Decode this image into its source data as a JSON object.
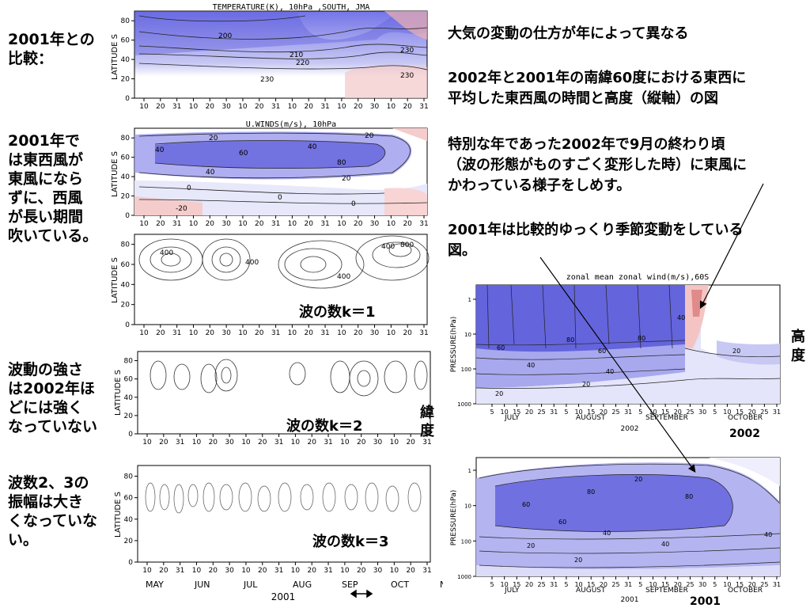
{
  "left_notes": {
    "n1": "2001年との\n比較：",
    "n2": "2001年で\nは東西風が\n東風になら\nずに、西風\nが長い期間\n吹いている。",
    "n3": "波動の強さ\nは2002年ほ\nどには強く\nなっていない",
    "n4": "波数2、3の\n振幅は大き\nくなっていな\nい。"
  },
  "right_notes": {
    "r1": "大気の変動の仕方が年によって異なる",
    "r2": "2002年と2001年の南緯60度における東西に\n平均した東西風の時間と高度（縦軸）の図",
    "r3": "特別な年であった2002年で9月の終わり頃\n（波の形態がものすごく変形した時）に東風に\nかわっている様子をしめす。",
    "r4": "2001年は比較的ゆっくり季節変動をしている\n図。"
  },
  "labels": {
    "k1": "波の数k＝1",
    "k2": "波の数k＝2",
    "k3": "波の数k＝3",
    "lat_jp": "緯\n度",
    "height_jp": "高\n度",
    "y2002": "2002",
    "y2001": "2001"
  },
  "colors": {
    "blue": "#6f6fe0",
    "red": "#e08080",
    "contour": "#222222"
  },
  "chart_data": [
    {
      "type": "heatmap",
      "title": "TEMPERATURE(K),   10hPa ,SOUTH, JMA",
      "ylabel": "LATITUDE S",
      "yticks": [
        0,
        20,
        40,
        60,
        80
      ],
      "ylim": [
        0,
        90
      ],
      "xticks": [
        "10",
        "20",
        "31",
        "10",
        "20",
        "30",
        "10",
        "20",
        "31",
        "10",
        "20",
        "31",
        "10",
        "20",
        "30",
        "10",
        "20",
        "31"
      ],
      "contour_labels": [
        200,
        210,
        220,
        230,
        230,
        230
      ]
    },
    {
      "type": "heatmap",
      "title": "U.WINDS(m/s),   10hPa",
      "ylabel": "LATITUDE S",
      "yticks": [
        0,
        20,
        40,
        60,
        80
      ],
      "ylim": [
        0,
        90
      ],
      "xticks": [
        "10",
        "20",
        "31",
        "10",
        "20",
        "30",
        "10",
        "20",
        "31",
        "10",
        "20",
        "31",
        "10",
        "20",
        "30",
        "10",
        "20",
        "31"
      ],
      "contour_labels": [
        20,
        20,
        40,
        40,
        60,
        80,
        40,
        20,
        0,
        0,
        0,
        -20
      ]
    },
    {
      "type": "heatmap",
      "title": "",
      "ylabel": "LATITUDE S",
      "yticks": [
        0,
        20,
        40,
        60,
        80
      ],
      "ylim": [
        0,
        90
      ],
      "xticks": [
        "10",
        "20",
        "31",
        "10",
        "20",
        "30",
        "10",
        "20",
        "31",
        "10",
        "20",
        "31",
        "10",
        "20",
        "30",
        "10",
        "20",
        "31"
      ],
      "contour_labels": [
        400,
        400,
        400,
        400,
        800
      ]
    },
    {
      "type": "heatmap",
      "title": "",
      "ylabel": "LATITUDE S",
      "yticks": [
        0,
        20,
        40,
        60,
        80
      ],
      "ylim": [
        0,
        90
      ],
      "xticks": [
        "10",
        "20",
        "31",
        "10",
        "20",
        "30",
        "10",
        "20",
        "31",
        "10",
        "20",
        "31",
        "10",
        "20",
        "30",
        "10",
        "20",
        "31"
      ]
    },
    {
      "type": "heatmap",
      "title": "",
      "ylabel": "LATITUDE S",
      "yticks": [
        0,
        20,
        40,
        60,
        80
      ],
      "ylim": [
        0,
        90
      ],
      "xticks": [
        "10",
        "20",
        "31",
        "10",
        "20",
        "30",
        "10",
        "20",
        "31",
        "10",
        "20",
        "31",
        "10",
        "20",
        "30",
        "10",
        "20",
        "31"
      ],
      "months": [
        "MAY",
        "JUN",
        "JUL",
        "AUG",
        "SEP",
        "OCT",
        "N"
      ],
      "year": "2001"
    },
    {
      "type": "heatmap",
      "title": "zonal mean zonal wind(m/s),60S",
      "ylabel": "PRESSURE(hPa)",
      "yticks": [
        1,
        10,
        100,
        1000
      ],
      "xticks": [
        "5",
        "10",
        "15",
        "20",
        "25",
        "31",
        "5",
        "10",
        "15",
        "20",
        "25",
        "31",
        "5",
        "10",
        "15",
        "20",
        "25",
        "30",
        "5",
        "10",
        "15",
        "20",
        "25",
        "31"
      ],
      "months": [
        "JULY",
        "AUGUST",
        "SEPTEMBER",
        "OCTOBER"
      ],
      "year": "2002",
      "contour_labels": [
        60,
        80,
        40,
        60,
        80,
        40,
        40,
        20,
        20,
        20
      ]
    },
    {
      "type": "heatmap",
      "title": "",
      "ylabel": "PRESSURE(hPa)",
      "yticks": [
        1,
        10,
        100,
        1000
      ],
      "xticks": [
        "5",
        "10",
        "15",
        "20",
        "25",
        "31",
        "5",
        "10",
        "15",
        "20",
        "25",
        "31",
        "5",
        "10",
        "15",
        "20",
        "25",
        "30",
        "5",
        "10",
        "15",
        "20",
        "25",
        "31"
      ],
      "months": [
        "JULY",
        "AUGUST",
        "SEPTEMBER",
        "OCTOBER"
      ],
      "year": "2001",
      "contour_labels": [
        60,
        80,
        80,
        60,
        40,
        40,
        20,
        40,
        20,
        20
      ]
    }
  ]
}
